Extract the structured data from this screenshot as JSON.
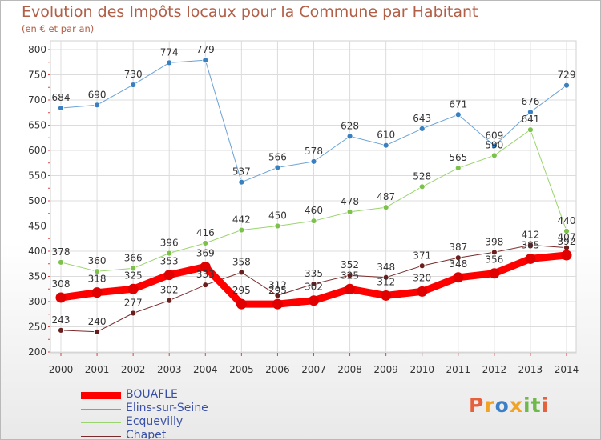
{
  "title": "Evolution des Impôts locaux pour la Commune par Habitant",
  "subtitle": "(en € et par an)",
  "brand": {
    "letters": [
      "P",
      "r",
      "o",
      "x",
      "i",
      "t",
      "i"
    ],
    "colors": [
      "#e5603b",
      "#f0a325",
      "#3d7fc6",
      "#f0a325",
      "#6fb84a",
      "#6fb84a",
      "#e5603b"
    ]
  },
  "chart_data": {
    "type": "line",
    "x": [
      "2000",
      "2001",
      "2002",
      "2003",
      "2004",
      "2005",
      "2006",
      "2007",
      "2008",
      "2009",
      "2010",
      "2011",
      "2012",
      "2013",
      "2014"
    ],
    "ylim": [
      200,
      800
    ],
    "yticks": [
      200,
      250,
      300,
      350,
      400,
      450,
      500,
      550,
      600,
      650,
      700,
      750,
      800
    ],
    "ytick_labels": [
      "200",
      "250",
      "300",
      "350",
      "400",
      "450",
      "500",
      "550",
      "600",
      "650",
      "700",
      "750",
      "800"
    ],
    "grid": true,
    "legend_position": "bottom-left",
    "series": [
      {
        "name": "Elins-sur-Seine",
        "color": "#6ba3d6",
        "marker": "#3a7fc0",
        "width": 1,
        "values": [
          684,
          690,
          730,
          774,
          779,
          537,
          566,
          578,
          628,
          610,
          643,
          671,
          609,
          676,
          729
        ],
        "labels": [
          "684",
          "690",
          "730",
          "774",
          "779",
          "537",
          "566",
          "578",
          "628",
          "610",
          "643",
          "671",
          "609",
          "676",
          "729"
        ]
      },
      {
        "name": "Ecquevilly",
        "color": "#9ad46e",
        "marker": "#7cc24a",
        "width": 1,
        "values": [
          378,
          360,
          366,
          396,
          416,
          442,
          450,
          460,
          478,
          487,
          528,
          565,
          590,
          641,
          440
        ],
        "labels": [
          "378",
          "360",
          "366",
          "396",
          "416",
          "442",
          "450",
          "460",
          "478",
          "487",
          "528",
          "565",
          "590",
          "641",
          "440"
        ]
      },
      {
        "name": "Chapet",
        "color": "#7a2a2a",
        "marker": "#6a1f1f",
        "width": 1,
        "values": [
          243,
          240,
          277,
          302,
          333,
          358,
          312,
          335,
          352,
          348,
          371,
          387,
          398,
          412,
          407
        ],
        "labels": [
          "243",
          "240",
          "277",
          "302",
          "333",
          "358",
          "312",
          "335",
          "352",
          "348",
          "371",
          "387",
          "398",
          "412",
          "407"
        ]
      },
      {
        "name": "BOUAFLE",
        "color": "#ff0000",
        "marker": "#e00000",
        "width": 9,
        "values": [
          308,
          318,
          325,
          353,
          369,
          295,
          295,
          302,
          325,
          312,
          320,
          348,
          356,
          385,
          392
        ],
        "labels": [
          "308",
          "318",
          "325",
          "353",
          "369",
          "295",
          "295",
          "302",
          "325",
          "312",
          "320",
          "348",
          "356",
          "385",
          "392"
        ]
      }
    ]
  },
  "legend": [
    {
      "label": "BOUAFLE",
      "color": "#ff0000",
      "thickness": 9
    },
    {
      "label": "Elins-sur-Seine",
      "color": "#6ba3d6",
      "thickness": 1
    },
    {
      "label": "Ecquevilly",
      "color": "#9ad46e",
      "thickness": 1
    },
    {
      "label": "Chapet",
      "color": "#7a2a2a",
      "thickness": 1
    }
  ]
}
